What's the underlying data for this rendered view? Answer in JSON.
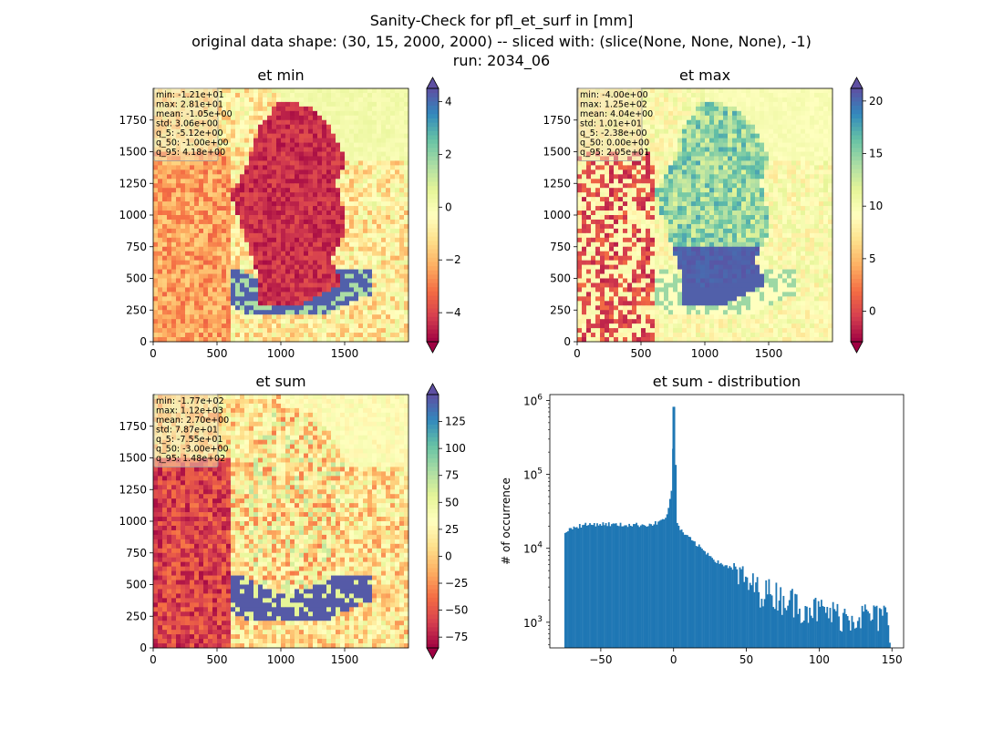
{
  "figure": {
    "suptitle_lines": [
      "Sanity-Check for pfl_et_surf in [mm]",
      "original data shape: (30, 15, 2000, 2000) -- sliced with: (slice(None, None, None), -1)",
      "run: 2034_06"
    ]
  },
  "chart_data": [
    {
      "type": "heatmap",
      "title": "et min",
      "xlim": [
        0,
        2000
      ],
      "ylim": [
        0,
        2000
      ],
      "xticks": [
        0,
        500,
        1000,
        1500
      ],
      "yticks": [
        0,
        250,
        500,
        750,
        1000,
        1250,
        1500,
        1750
      ],
      "colormap": "Spectral",
      "colorbar": {
        "range": [
          -5.1,
          4.5
        ],
        "ticks": [
          -4,
          -2,
          0,
          2,
          4
        ],
        "extend": "both"
      },
      "stats": [
        "min: -1.21e+01",
        "max: 2.81e+01",
        "mean: -1.05e+00",
        "std: 3.06e+00",
        "q_5: -5.12e+00",
        "q_50: -1.00e+00",
        "q_95: 4.18e+00"
      ]
    },
    {
      "type": "heatmap",
      "title": "et max",
      "xlim": [
        0,
        2000
      ],
      "ylim": [
        0,
        2000
      ],
      "xticks": [
        0,
        500,
        1000,
        1500
      ],
      "yticks": [
        0,
        250,
        500,
        750,
        1000,
        1250,
        1500,
        1750
      ],
      "colormap": "Spectral",
      "colorbar": {
        "range": [
          -2.9,
          21.2
        ],
        "ticks": [
          0,
          5,
          10,
          15,
          20
        ],
        "extend": "both"
      },
      "stats": [
        "min: -4.00e+00",
        "max: 1.25e+02",
        "mean: 4.04e+00",
        "std: 1.01e+01",
        "q_5: -2.38e+00",
        "q_50: 0.00e+00",
        "q_95: 2.05e+01"
      ]
    },
    {
      "type": "heatmap",
      "title": "et sum",
      "xlim": [
        0,
        2000
      ],
      "ylim": [
        0,
        2000
      ],
      "xticks": [
        0,
        500,
        1000,
        1500
      ],
      "yticks": [
        0,
        250,
        500,
        750,
        1000,
        1250,
        1500,
        1750
      ],
      "colormap": "Spectral",
      "colorbar": {
        "range": [
          -85,
          150
        ],
        "ticks": [
          -75,
          -50,
          -25,
          0,
          25,
          50,
          75,
          100,
          125
        ],
        "extend": "both"
      },
      "stats": [
        "min: -1.77e+02",
        "max: 1.12e+03",
        "mean: 2.70e+00",
        "std: 7.87e+01",
        "q_5: -7.55e+01",
        "q_50: -3.00e+00",
        "q_95: 1.48e+02"
      ]
    },
    {
      "type": "bar",
      "title": "et sum - distribution",
      "xlabel": "",
      "ylabel": "# of occurrence",
      "yscale": "log",
      "xlim": [
        -85,
        158
      ],
      "ylim": [
        450,
        1200000
      ],
      "xticks": [
        -50,
        0,
        50,
        100,
        150
      ],
      "yticks_exp": [
        3,
        4,
        5,
        6
      ],
      "color": "#1f77b4",
      "series": [
        {
          "x": [
            -75,
            -70,
            -65,
            -60,
            -55,
            -50,
            -45,
            -40,
            -35,
            -30,
            -25,
            -20,
            -15,
            -10,
            -5,
            -2,
            0,
            2,
            5,
            10,
            15,
            20,
            25,
            30,
            35,
            40,
            45,
            50,
            55,
            60,
            65,
            70,
            75,
            80,
            85,
            90,
            95,
            100,
            105,
            110,
            115,
            120,
            125,
            130,
            135,
            140,
            145,
            148
          ],
          "values": [
            17000,
            19000,
            20500,
            21000,
            21500,
            21500,
            21500,
            21000,
            21000,
            21000,
            21000,
            21000,
            21500,
            23000,
            28000,
            60000,
            820000,
            22000,
            17000,
            14000,
            11500,
            9500,
            8000,
            6500,
            6000,
            5200,
            4500,
            3500,
            3200,
            2800,
            2700,
            2500,
            2200,
            2100,
            1800,
            1700,
            1600,
            1500,
            1400,
            1350,
            1300,
            1250,
            1250,
            1300,
            1250,
            1200,
            1300,
            700
          ]
        }
      ]
    }
  ]
}
